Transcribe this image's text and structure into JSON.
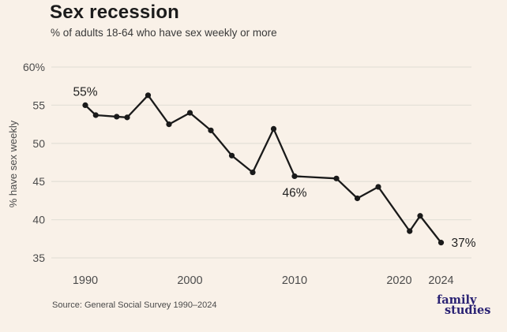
{
  "header": {
    "title": "Sex recession",
    "subtitle": "% of adults 18-64 who have sex weekly or more"
  },
  "colors": {
    "background": "#f9f1e8",
    "line": "#1a1a1a",
    "point": "#1a1a1a",
    "grid": "#e5e1d8",
    "axis_text": "#4c4c4c",
    "annotation_text": "#222222",
    "logo_navy": "#2a2273"
  },
  "chart_data": {
    "type": "line",
    "title": "Sex recession",
    "subtitle": "% of adults 18-64 who have sex weekly or more",
    "xlabel": "",
    "ylabel": "% have sex weekly",
    "x": [
      1990,
      1991,
      1993,
      1994,
      1996,
      1998,
      2000,
      2002,
      2004,
      2006,
      2008,
      2010,
      2014,
      2016,
      2018,
      2021,
      2022,
      2024
    ],
    "values": [
      55,
      53.7,
      53.5,
      53.4,
      56.3,
      52.5,
      54,
      51.7,
      48.4,
      46.2,
      51.9,
      45.7,
      45.4,
      42.8,
      44.3,
      38.5,
      40.5,
      37
    ],
    "ylim": [
      35,
      60
    ],
    "yticks": [
      35,
      40,
      45,
      50,
      55,
      60
    ],
    "ytick_labels": [
      "35",
      "40",
      "45",
      "50",
      "55",
      "60%"
    ],
    "xticks": [
      1990,
      2000,
      2010,
      2020,
      2024
    ],
    "xtick_labels": [
      "1990",
      "2000",
      "2010",
      "2020",
      "2024"
    ],
    "grid": "horizontal",
    "legend": "none",
    "annotations": [
      {
        "x": 1990,
        "y": 55,
        "label": "55%",
        "position": "above"
      },
      {
        "x": 2010,
        "y": 45.7,
        "label": "46%",
        "position": "below"
      },
      {
        "x": 2024,
        "y": 37,
        "label": "37%",
        "position": "right"
      }
    ]
  },
  "footer": {
    "source": "Source: General Social Survey 1990–2024",
    "logo_line1": "family",
    "logo_line2": "studies"
  }
}
